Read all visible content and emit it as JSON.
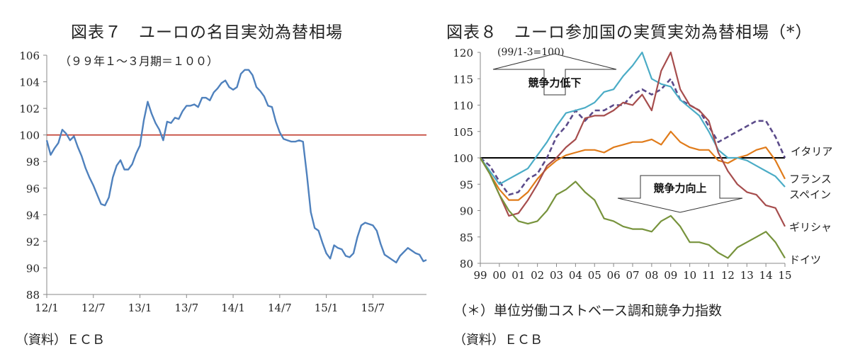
{
  "chart_data": [
    {
      "type": "line",
      "title": "図表７　ユーロの名目実効為替相場",
      "annotation": "（９９年１～３月期＝１００）",
      "source": "（資料）ＥＣＢ",
      "ylim": [
        88,
        106
      ],
      "yticks": [
        "88",
        "90",
        "92",
        "94",
        "96",
        "98",
        "100",
        "102",
        "104",
        "106"
      ],
      "xticks": [
        "12/1",
        "12/7",
        "13/1",
        "13/7",
        "14/1",
        "14/7",
        "15/1",
        "15/7"
      ],
      "reference_line": 100,
      "colors": {
        "series": "#4f81bd",
        "reference": "#c0392b"
      },
      "series": [
        {
          "x": [
            0,
            0.5,
            1,
            1.5,
            2,
            2.5,
            3,
            3.5,
            4,
            4.5,
            5,
            5.5,
            6,
            6.5,
            7,
            7.5,
            8,
            8.5,
            9,
            9.5,
            10,
            10.5,
            11,
            11.5,
            12,
            12.5,
            13,
            13.5,
            14,
            14.5,
            15,
            15.5,
            16,
            16.5,
            17,
            17.5,
            18,
            18.5,
            19,
            19.5,
            20,
            20.5,
            21,
            21.5,
            22,
            22.5,
            23,
            23.5,
            24,
            24.5,
            25,
            25.5,
            26,
            26.5,
            27,
            27.5,
            28,
            28.5,
            29,
            29.5,
            30,
            30.5,
            31,
            31.5,
            32,
            32.5,
            33,
            33.5,
            34,
            34.5,
            35,
            35.5,
            36,
            36.5,
            37,
            37.5,
            38,
            38.5,
            39,
            39.5,
            40,
            40.5,
            41,
            41.5,
            42,
            42.5,
            43,
            43.5,
            44,
            44.5,
            45,
            45.5,
            46,
            46.5,
            47,
            47.5,
            48,
            48.5,
            48.9
          ],
          "values": [
            99.6,
            98.5,
            99.0,
            99.4,
            100.4,
            100.1,
            99.6,
            99.9,
            99.1,
            98.4,
            97.5,
            96.8,
            96.2,
            95.5,
            94.8,
            94.7,
            95.3,
            96.8,
            97.7,
            98.1,
            97.4,
            97.4,
            97.8,
            98.6,
            99.2,
            101.1,
            102.5,
            101.6,
            100.9,
            100.4,
            99.6,
            101.0,
            100.9,
            101.3,
            101.2,
            101.8,
            102.2,
            102.2,
            102.3,
            102.1,
            102.8,
            102.8,
            102.6,
            103.2,
            103.5,
            103.9,
            104.1,
            103.6,
            103.4,
            103.6,
            104.6,
            104.9,
            104.9,
            104.5,
            103.6,
            103.3,
            102.9,
            102.2,
            102.1,
            101.0,
            100.2,
            99.7,
            99.6,
            99.5,
            99.5,
            99.6,
            99.5,
            97.0,
            94.2,
            93.0,
            92.8,
            91.9,
            91.1,
            90.7,
            91.7,
            91.5,
            91.4,
            90.9,
            90.8,
            91.1,
            92.3,
            93.2,
            93.4,
            93.3,
            93.2,
            92.8,
            91.8,
            91.0,
            90.8,
            90.6,
            90.4,
            90.9,
            91.2,
            91.5,
            91.3,
            91.1,
            91.0,
            90.5,
            90.6
          ]
        }
      ]
    },
    {
      "type": "line",
      "title": "図表８　ユーロ参加国の実質実効為替相場（*）",
      "annotation": "(99/1-3=100)",
      "footnote": "（＊）単位労働コストベース調和競争力指数",
      "source": "（資料）ＥＣＢ",
      "ylim": [
        80,
        120
      ],
      "yticks": [
        "80",
        "85",
        "90",
        "95",
        "100",
        "105",
        "110",
        "115",
        "120"
      ],
      "xticks": [
        "99",
        "00",
        "01",
        "02",
        "03",
        "04",
        "05",
        "06",
        "07",
        "08",
        "09",
        "10",
        "11",
        "12",
        "13",
        "14",
        "15"
      ],
      "reference_line": 100,
      "arrow_up_label": "競争力低下",
      "arrow_down_label": "競争力向上",
      "series": [
        {
          "name": "イタリア",
          "color": "#5b4b8a",
          "dashed": true,
          "x": [
            0,
            0.5,
            1,
            1.5,
            2,
            2.5,
            3,
            3.5,
            4,
            4.5,
            5,
            5.5,
            6,
            6.5,
            7,
            7.5,
            8,
            8.5,
            9,
            9.5,
            10,
            10.5,
            11,
            11.5,
            12,
            12.5,
            13,
            13.5,
            14,
            14.5,
            15,
            15.5,
            16
          ],
          "values": [
            100,
            98.5,
            95.5,
            93,
            93.5,
            96,
            97,
            100,
            104,
            106,
            109,
            107,
            109,
            109,
            110,
            110,
            112,
            113,
            112,
            113,
            115,
            111,
            110,
            109,
            106,
            103,
            104,
            105,
            106,
            107,
            107,
            104,
            100
          ]
        },
        {
          "name": "フランス",
          "color": "#e07b1a",
          "dashed": false,
          "x": [
            0,
            0.5,
            1,
            1.5,
            2,
            2.5,
            3,
            3.5,
            4,
            4.5,
            5,
            5.5,
            6,
            6.5,
            7,
            7.5,
            8,
            8.5,
            9,
            9.5,
            10,
            10.5,
            11,
            11.5,
            12,
            12.5,
            13,
            13.5,
            14,
            14.5,
            15,
            15.5,
            16
          ],
          "values": [
            100,
            97,
            94,
            92,
            92,
            93.5,
            96,
            98,
            99.5,
            100.5,
            101,
            101.5,
            101.5,
            101,
            102,
            102.5,
            103,
            103,
            103.5,
            102.5,
            105,
            103,
            102,
            101.5,
            101.5,
            99.5,
            99,
            100,
            100.5,
            101.5,
            102,
            99.5,
            96
          ]
        },
        {
          "name": "スペイン",
          "color": "#4bacc6",
          "dashed": false,
          "x": [
            0,
            0.5,
            1,
            1.5,
            2,
            2.5,
            3,
            3.5,
            4,
            4.5,
            5,
            5.5,
            6,
            6.5,
            7,
            7.5,
            8,
            8.5,
            9,
            9.5,
            10,
            10.5,
            11,
            11.5,
            12,
            12.5,
            13,
            13.5,
            14,
            14.5,
            15,
            15.5,
            16
          ],
          "values": [
            100,
            97.5,
            95,
            96,
            97,
            98,
            100.5,
            103,
            106,
            108.5,
            109,
            109.5,
            110.5,
            112.5,
            113,
            115.5,
            117.5,
            120,
            115,
            114,
            113.5,
            111,
            109.5,
            108,
            105,
            101.5,
            100,
            100,
            99.5,
            98.5,
            97.5,
            96.5,
            94.5
          ]
        },
        {
          "name": "ギリシャ",
          "color": "#a64d4d",
          "dashed": false,
          "x": [
            0,
            0.5,
            1,
            1.5,
            2,
            2.5,
            3,
            3.5,
            4,
            4.5,
            5,
            5.5,
            6,
            6.5,
            7,
            7.5,
            8,
            8.5,
            9,
            9.5,
            10,
            10.5,
            11,
            11.5,
            12,
            12.5,
            13,
            13.5,
            14,
            14.5,
            15,
            15.5,
            16
          ],
          "values": [
            100,
            97,
            93,
            89,
            89.5,
            92,
            95,
            98.5,
            100,
            102,
            103.5,
            107.5,
            108,
            108,
            109,
            110.5,
            110,
            112,
            109,
            116.5,
            120,
            113,
            110,
            109,
            107,
            101,
            97.5,
            95,
            93.5,
            93,
            91,
            90.5,
            87
          ]
        },
        {
          "name": "ドイツ",
          "color": "#77933c",
          "dashed": false,
          "x": [
            0,
            0.5,
            1,
            1.5,
            2,
            2.5,
            3,
            3.5,
            4,
            4.5,
            5,
            5.5,
            6,
            6.5,
            7,
            7.5,
            8,
            8.5,
            9,
            9.5,
            10,
            10.5,
            11,
            11.5,
            12,
            12.5,
            13,
            13.5,
            14,
            14.5,
            15,
            15.5,
            16
          ],
          "values": [
            100,
            97,
            93,
            90,
            88,
            87.5,
            88,
            90,
            93,
            94,
            95.5,
            93.5,
            92,
            88.5,
            88,
            87,
            86.5,
            86.5,
            86,
            88,
            89,
            87,
            84,
            84,
            83.5,
            82,
            81,
            83,
            84,
            85,
            86,
            84,
            81
          ]
        }
      ]
    }
  ]
}
